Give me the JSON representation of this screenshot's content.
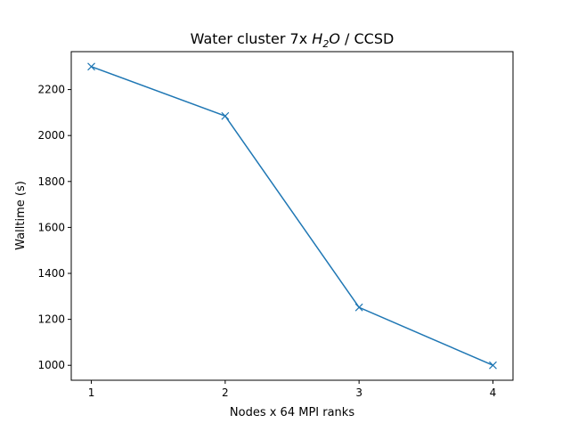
{
  "chart_data": {
    "type": "line",
    "title": {
      "prefix": "Water cluster 7x ",
      "math_main": "H",
      "math_sub": "2",
      "math_tail": "O",
      "suffix": " / CCSD"
    },
    "xlabel": "Nodes x 64 MPI ranks",
    "ylabel": "Walltime (s)",
    "x": [
      1,
      2,
      3,
      4
    ],
    "series": [
      {
        "name": "walltime",
        "values": [
          2300,
          2085,
          1252,
          1000
        ],
        "color": "#1f77b4",
        "marker": "x"
      }
    ],
    "xlim": [
      0.85,
      4.15
    ],
    "ylim": [
      935,
      2365
    ],
    "xticks": [
      1,
      2,
      3,
      4
    ],
    "yticks": [
      1000,
      1200,
      1400,
      1600,
      1800,
      2000,
      2200
    ],
    "grid": false
  }
}
